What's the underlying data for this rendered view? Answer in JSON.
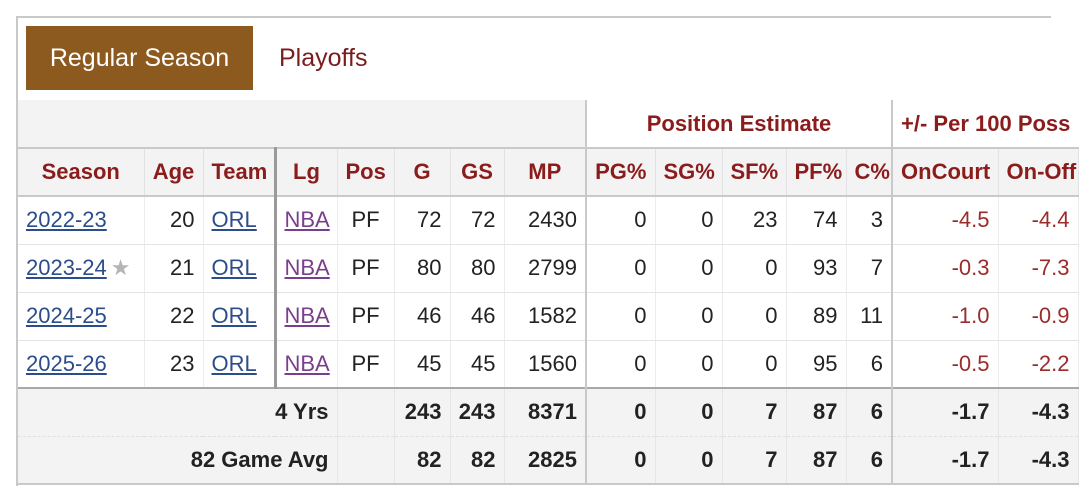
{
  "tabs": {
    "active": "Regular Season",
    "other": "Playoffs"
  },
  "groups": {
    "position": "Position Estimate",
    "plusminus": "+/- Per 100 Poss"
  },
  "headers": [
    "Season",
    "Age",
    "Team",
    "Lg",
    "Pos",
    "G",
    "GS",
    "MP",
    "PG%",
    "SG%",
    "SF%",
    "PF%",
    "C%",
    "OnCourt",
    "On-Off"
  ],
  "rows": [
    {
      "season": "2022-23",
      "star": "",
      "age": "20",
      "team": "ORL",
      "lg": "NBA",
      "pos": "PF",
      "g": "72",
      "gs": "72",
      "mp": "2430",
      "pg": "0",
      "sg": "0",
      "sf": "23",
      "pf": "74",
      "c": "3",
      "oncourt": "-4.5",
      "onoff": "-4.4"
    },
    {
      "season": "2023-24",
      "star": "★",
      "age": "21",
      "team": "ORL",
      "lg": "NBA",
      "pos": "PF",
      "g": "80",
      "gs": "80",
      "mp": "2799",
      "pg": "0",
      "sg": "0",
      "sf": "0",
      "pf": "93",
      "c": "7",
      "oncourt": "-0.3",
      "onoff": "-7.3"
    },
    {
      "season": "2024-25",
      "star": "",
      "age": "22",
      "team": "ORL",
      "lg": "NBA",
      "pos": "PF",
      "g": "46",
      "gs": "46",
      "mp": "1582",
      "pg": "0",
      "sg": "0",
      "sf": "0",
      "pf": "89",
      "c": "11",
      "oncourt": "-1.0",
      "onoff": "-0.9"
    },
    {
      "season": "2025-26",
      "star": "",
      "age": "23",
      "team": "ORL",
      "lg": "NBA",
      "pos": "PF",
      "g": "45",
      "gs": "45",
      "mp": "1560",
      "pg": "0",
      "sg": "0",
      "sf": "0",
      "pf": "95",
      "c": "6",
      "oncourt": "-0.5",
      "onoff": "-2.2"
    }
  ],
  "totals": [
    {
      "label": "4 Yrs",
      "g": "243",
      "gs": "243",
      "mp": "8371",
      "pg": "0",
      "sg": "0",
      "sf": "7",
      "pf": "87",
      "c": "6",
      "oncourt": "-1.7",
      "onoff": "-4.3"
    },
    {
      "label": "82 Game Avg",
      "g": "82",
      "gs": "82",
      "mp": "2825",
      "pg": "0",
      "sg": "0",
      "sf": "7",
      "pf": "87",
      "c": "6",
      "oncourt": "-1.7",
      "onoff": "-4.3"
    }
  ]
}
